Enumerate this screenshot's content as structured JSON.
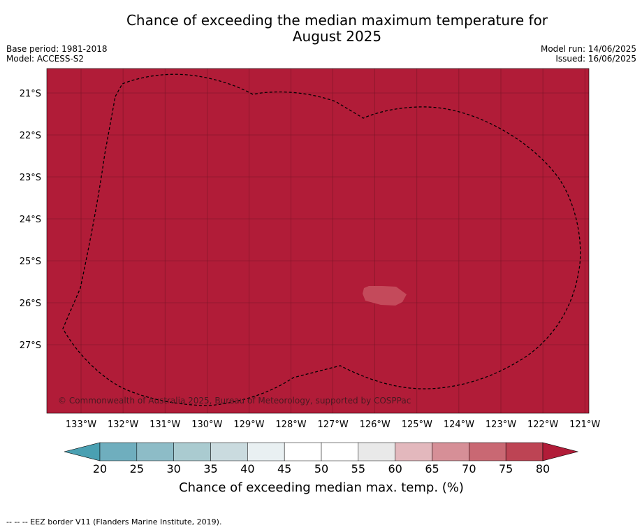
{
  "title_line1": "Chance of exceeding the median maximum temperature for",
  "title_line2": "August 2025",
  "base_period": "Base period: 1981-2018",
  "model": "Model: ACCESS-S2",
  "model_run": "Model run: 14/06/2025",
  "issued": "Issued: 16/06/2025",
  "copyright": "© Commonwealth of Australia 2025, Bureau of Meteorology, supported by COSPPac",
  "footer_note": "--  --  -- EEZ border V11 (Flanders Marine Institute, 2019).",
  "map": {
    "lon_range": [
      -133.8,
      -120.9
    ],
    "lat_range": [
      -21.6,
      -29.8
    ],
    "lon_ticks": [
      {
        "value": -133,
        "label": "133°W"
      },
      {
        "value": -132,
        "label": "132°W"
      },
      {
        "value": -131,
        "label": "131°W"
      },
      {
        "value": -130,
        "label": "130°W"
      },
      {
        "value": -129,
        "label": "129°W"
      },
      {
        "value": -128,
        "label": "128°W"
      },
      {
        "value": -127,
        "label": "127°W"
      },
      {
        "value": -126,
        "label": "126°W"
      },
      {
        "value": -125,
        "label": "125°W"
      },
      {
        "value": -124,
        "label": "124°W"
      },
      {
        "value": -123,
        "label": "123°W"
      },
      {
        "value": -122,
        "label": "122°W"
      },
      {
        "value": -121,
        "label": "121°W"
      }
    ],
    "lat_ticks": [
      {
        "value": -21,
        "label": "21°S"
      },
      {
        "value": -22,
        "label": "22°S"
      },
      {
        "value": -23,
        "label": "23°S"
      },
      {
        "value": -24,
        "label": "24°S"
      },
      {
        "value": -25,
        "label": "25°S"
      },
      {
        "value": -26,
        "label": "26°S"
      },
      {
        "value": -27,
        "label": "27°S"
      }
    ],
    "background_class_color": "#b11c38",
    "grid": true,
    "patch": {
      "color": "#c44a5b",
      "approx_probability_pct": "75-80",
      "lon_range": [
        -126.3,
        -125.3
      ],
      "lat_range": [
        -25.6,
        -26.1
      ]
    }
  },
  "colorbar": {
    "label": "Chance of exceeding median max. temp. (%)",
    "ticks": [
      "20",
      "25",
      "30",
      "35",
      "40",
      "45",
      "50",
      "55",
      "60",
      "65",
      "70",
      "75",
      "80"
    ],
    "under_color": "#4aa0b2",
    "over_color": "#b11c38",
    "bin_colors": [
      "#6faebe",
      "#8dbcc7",
      "#aacbd0",
      "#cadbdf",
      "#e9f0f2",
      "#ffffff",
      "#ffffff",
      "#e9e9e9",
      "#e3b8bd",
      "#d68f97",
      "#c96873",
      "#bd4454"
    ]
  }
}
